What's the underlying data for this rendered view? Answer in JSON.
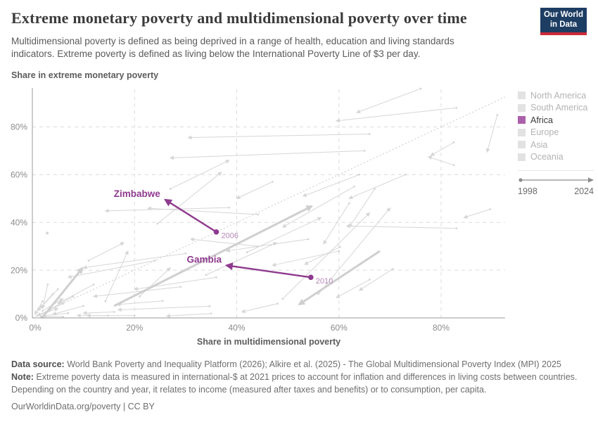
{
  "header": {
    "title": "Extreme monetary poverty and multidimensional poverty over time",
    "subtitle_line1": "Multidimensional poverty is defined as being deprived in a range of health, education and living standards",
    "subtitle_line2": "indicators. Extreme poverty is defined as living below the International Poverty Line of $3 per day.",
    "logo": {
      "line1": "Our World",
      "line2": "in Data",
      "bg_color": "#1d3d63",
      "bar_color": "#cc2b39"
    }
  },
  "chart_data": {
    "type": "connected-scatter",
    "xlabel": "Share in multidimensional poverty",
    "ylabel": "Share in extreme monetary poverty",
    "x_ticks": [
      0,
      20,
      40,
      60,
      80
    ],
    "y_ticks": [
      0,
      20,
      40,
      60,
      80
    ],
    "tick_suffix": "%",
    "xlim": [
      0,
      92.5
    ],
    "ylim": [
      0,
      96.3
    ],
    "grid": true,
    "reference_line": {
      "style": "dotted",
      "from": [
        0,
        0
      ],
      "to": [
        92.5,
        92.5
      ]
    },
    "highlighted_series": [
      {
        "name": "Zimbabwe",
        "region": "Africa",
        "start": {
          "year": "2006",
          "x": 36,
          "y": 36
        },
        "end": {
          "x": 26,
          "y": 49.5
        }
      },
      {
        "name": "Gambia",
        "region": "Africa",
        "start": {
          "year": "2010",
          "x": 54.5,
          "y": 17
        },
        "end": {
          "x": 38,
          "y": 22
        }
      }
    ],
    "background_trajectories": [
      [
        76,
        96,
        63.5,
        86
      ],
      [
        83,
        88,
        59.5,
        82.5
      ],
      [
        66,
        77,
        30.5,
        75.5
      ],
      [
        65,
        70,
        27,
        67
      ],
      [
        91,
        85,
        89,
        69.5
      ],
      [
        82.5,
        73.5,
        78,
        68
      ],
      [
        82.5,
        64,
        77.5,
        67.5
      ],
      [
        44.2,
        43.3,
        22.6,
        45.9
      ],
      [
        38.5,
        46.2,
        14.3,
        44.8
      ],
      [
        63,
        55,
        49,
        38
      ],
      [
        73,
        60,
        62,
        50
      ],
      [
        89.6,
        45.5,
        84.5,
        42
      ],
      [
        83,
        37.5,
        61.5,
        38.5
      ],
      [
        49,
        8,
        66,
        44
      ],
      [
        56,
        10,
        70,
        46
      ],
      [
        66,
        16,
        59.5,
        8.5
      ],
      [
        70.5,
        20.5,
        64,
        11.5
      ],
      [
        64,
        60,
        53,
        51
      ],
      [
        47,
        57,
        40,
        50
      ],
      [
        34.7,
        4.9,
        16.8,
        3.4
      ],
      [
        20,
        1,
        10.7,
        1
      ],
      [
        35,
        1.8,
        26.3,
        0.8
      ],
      [
        30,
        27,
        10,
        21
      ],
      [
        24,
        24,
        7,
        17
      ],
      [
        29,
        13,
        12,
        9
      ],
      [
        36,
        17,
        20,
        12
      ],
      [
        14.3,
        7,
        18.7,
        28
      ],
      [
        48,
        6,
        41,
        2.5
      ],
      [
        62,
        48,
        57,
        31
      ],
      [
        67,
        54,
        62,
        38
      ],
      [
        54,
        33,
        38,
        28
      ],
      [
        60,
        28,
        47,
        22
      ],
      [
        24.5,
        39.5,
        37,
        61
      ],
      [
        27,
        54,
        38.5,
        66
      ],
      [
        34,
        18,
        47.8,
        31.5
      ],
      [
        42,
        27.5,
        56.5,
        42
      ],
      [
        60.2,
        29.7,
        53.3,
        22.4
      ],
      [
        11,
        24,
        17.9,
        31.5
      ],
      [
        6,
        6,
        1,
        1
      ],
      [
        7,
        2,
        2,
        0.8
      ],
      [
        2,
        7,
        0.5,
        1.5
      ],
      [
        8,
        9,
        3,
        3
      ],
      [
        4,
        10,
        1,
        3
      ],
      [
        10,
        5,
        4,
        1.5
      ],
      [
        1,
        1,
        5,
        4
      ],
      [
        2,
        3,
        6,
        8
      ],
      [
        14.8,
        1,
        8.8,
        1
      ],
      [
        16,
        2.5,
        10,
        2
      ],
      [
        5,
        12,
        1.5,
        4
      ],
      [
        12,
        14,
        5,
        6
      ],
      [
        3,
        14,
        2,
        4
      ],
      [
        6,
        0.5,
        1.5,
        0.5
      ],
      [
        25.5,
        7.1,
        16.6,
        5.6
      ],
      [
        44,
        30,
        31,
        33
      ],
      [
        21,
        9,
        27,
        21
      ]
    ],
    "thick_trajectories": [
      [
        16,
        5,
        54.7,
        46.8
      ],
      [
        1.9,
        0,
        9.8,
        20.9
      ],
      [
        68,
        28,
        52.2,
        5.6
      ]
    ],
    "isolated_points": [
      [
        2.9,
        35.5
      ]
    ],
    "colors": {
      "highlight": "#8e3a8e",
      "highlight_year_label": "#b587b5",
      "background_line": "#d6d6d6",
      "thick_line": "#cfcfcf",
      "grid": "#dcdcdc",
      "axis": "#9a9a9a",
      "tick_text": "#8c8c8c",
      "reference_dotted": "#c8c8c8"
    }
  },
  "legend": {
    "items": [
      {
        "label": "North America",
        "active": false
      },
      {
        "label": "South America",
        "active": false
      },
      {
        "label": "Africa",
        "active": true
      },
      {
        "label": "Europe",
        "active": false
      },
      {
        "label": "Asia",
        "active": false
      },
      {
        "label": "Oceania",
        "active": false
      }
    ],
    "timeline": {
      "start": "1998",
      "end": "2024"
    }
  },
  "footer": {
    "data_source_label": "Data source:",
    "data_source_text": " World Bank Poverty and Inequality Platform (2026); Alkire et al. (2025) - The Global Multidimensional Poverty Index (MPI) 2025",
    "note_label": "Note:",
    "note_text": " Extreme poverty data is measured in international-$ at 2021 prices to account for inflation and differences in living costs between countries. Depending on the country and year, it relates to income (measured after taxes and benefits) or to consumption, per capita.",
    "cc_line": "OurWorldinData.org/poverty | CC BY"
  }
}
